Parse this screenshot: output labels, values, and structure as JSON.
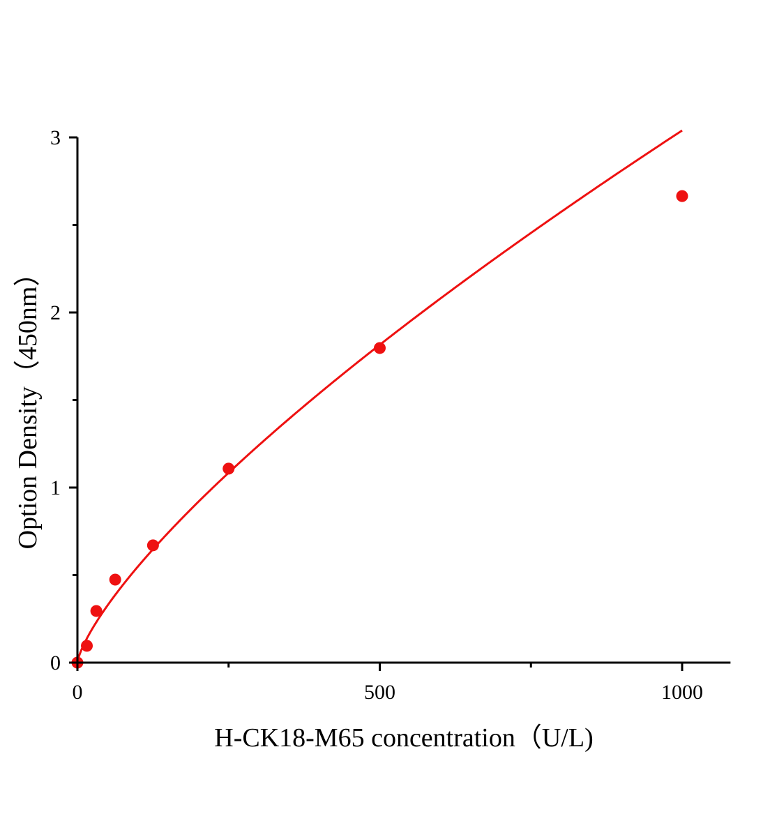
{
  "chart_data": {
    "type": "scatter",
    "title": "",
    "xlabel": "H-CK18-M65 concentration（U/L)",
    "ylabel": "Option Density（450nm）",
    "xlim": [
      0,
      1080
    ],
    "ylim": [
      0,
      3
    ],
    "x_ticks": [
      0,
      500,
      1000
    ],
    "x_tick_labels": [
      "0",
      "500",
      "1000"
    ],
    "x_minor_ticks": [
      250,
      750
    ],
    "y_ticks": [
      0,
      1,
      2,
      3
    ],
    "y_tick_labels": [
      "0",
      "1",
      "2",
      "3"
    ],
    "y_minor_ticks": [
      0.5,
      1.5,
      2.5
    ],
    "grid": false,
    "legend": "none",
    "series": [
      {
        "x": [
          0,
          15.6,
          31.25,
          62.5,
          125,
          250,
          500,
          1000
        ],
        "y": [
          0,
          0.096,
          0.295,
          0.474,
          0.67,
          1.108,
          1.797,
          2.665
        ],
        "marker": "circle",
        "fit_line": true,
        "color": "#ee1111"
      }
    ]
  }
}
